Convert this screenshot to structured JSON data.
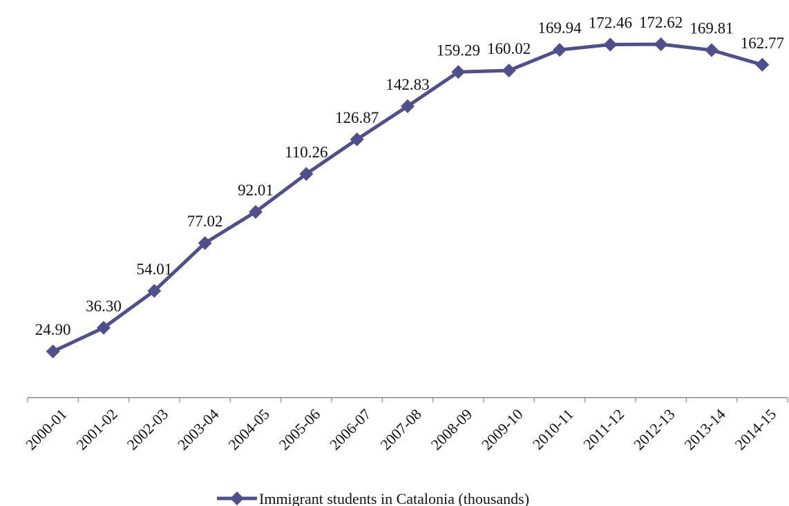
{
  "chart_data": {
    "type": "line",
    "title": "",
    "xlabel": "",
    "ylabel": "",
    "categories": [
      "2000-01",
      "2001-02",
      "2002-03",
      "2003-04",
      "2004-05",
      "2005-06",
      "2006-07",
      "2007-08",
      "2008-09",
      "2009-10",
      "2010-11",
      "2011-12",
      "2012-13",
      "2013-14",
      "2014-15"
    ],
    "series": [
      {
        "name": "Immigrant students in Catalonia (thousands)",
        "values": [
          24.9,
          36.3,
          54.01,
          77.02,
          92.01,
          110.26,
          126.87,
          142.83,
          159.29,
          160.02,
          169.94,
          172.46,
          172.62,
          169.81,
          162.77
        ],
        "value_labels": [
          "24.90",
          "36.30",
          "54.01",
          "77.02",
          "92.01",
          "110.26",
          "126.87",
          "142.83",
          "159.29",
          "160.02",
          "169.94",
          "172.46",
          "172.62",
          "169.81",
          "162.77"
        ],
        "color": "#4f4f8c",
        "marker": "diamond"
      }
    ],
    "ylim": [
      0,
      180
    ],
    "grid": false,
    "y_axis_visible": false,
    "legend_position": "bottom-center"
  }
}
